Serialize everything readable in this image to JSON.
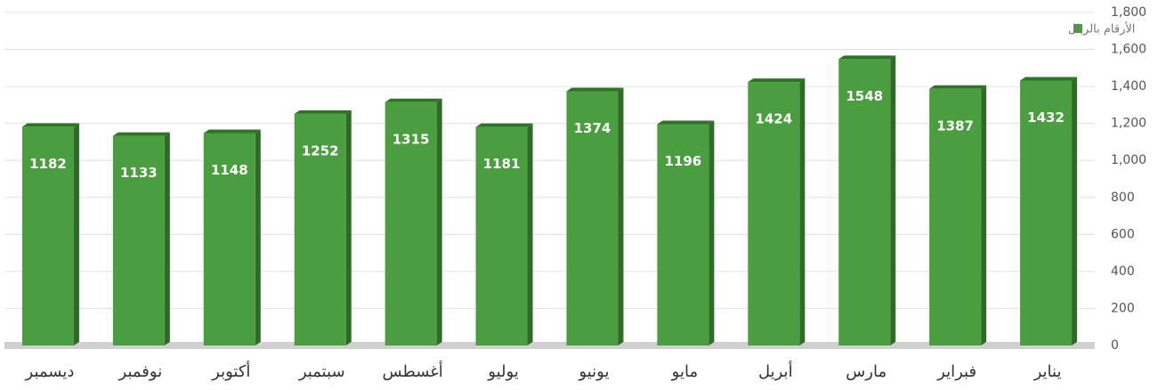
{
  "chart_data": {
    "type": "bar",
    "categories": [
      "يناير",
      "فبراير",
      "مارس",
      "أبريل",
      "مايو",
      "يونيو",
      "يوليو",
      "أغسطس",
      "سبتمبر",
      "أكتوبر",
      "نوفمبر",
      "ديسمبر"
    ],
    "series": [
      {
        "name": "الأرقام بالريال",
        "color": "#4a9e3f",
        "values": [
          1432,
          1387,
          1548,
          1424,
          1196,
          1374,
          1181,
          1315,
          1252,
          1148,
          1133,
          1182
        ]
      }
    ],
    "ylim": [
      0,
      1800
    ],
    "yticks": [
      0,
      200,
      400,
      600,
      800,
      {
        "value": 1000,
        "label": "1,000"
      },
      {
        "value": 1200,
        "label": "1,200"
      },
      {
        "value": 1400,
        "label": "1,400"
      },
      {
        "value": 1600,
        "label": "1,600"
      },
      {
        "value": 1800,
        "label": "1,800"
      }
    ],
    "grid": true,
    "legend": "top-right",
    "direction": "rtl"
  }
}
